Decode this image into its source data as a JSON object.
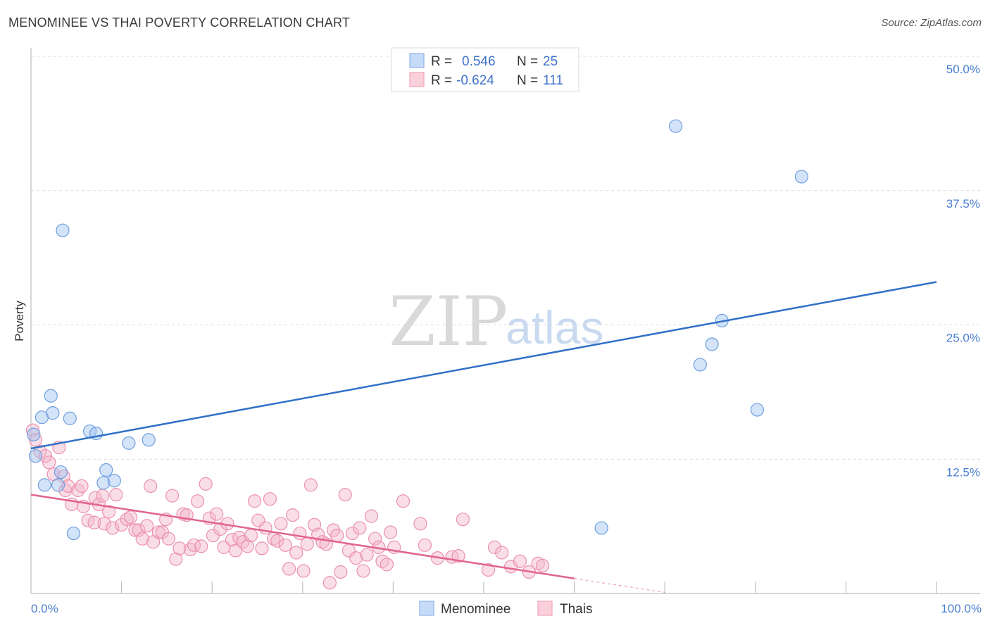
{
  "header": {
    "title": "MENOMINEE VS THAI POVERTY CORRELATION CHART",
    "source": "Source: ZipAtlas.com"
  },
  "watermark": {
    "zip": "ZIP",
    "atlas": "atlas"
  },
  "legend": {
    "rows": [
      {
        "r_label": "R =",
        "r_value": "0.546",
        "n_label": "N =",
        "n_value": "25",
        "color": "#9ec2f0"
      },
      {
        "r_label": "R =",
        "r_value": "-0.624",
        "n_label": "N =",
        "n_value": "111",
        "color": "#f5b5c9"
      }
    ]
  },
  "bottom_legend": [
    {
      "name": "Menominee",
      "color": "#9ec2f0"
    },
    {
      "name": "Thais",
      "color": "#f5b5c9"
    }
  ],
  "chart_data": {
    "type": "scatter",
    "ylabel": "Poverty",
    "xlim": [
      0,
      100
    ],
    "ylim": [
      0,
      50
    ],
    "y_ticks": [
      {
        "value": 12.5,
        "label": "12.5%"
      },
      {
        "value": 25,
        "label": "25.0%"
      },
      {
        "value": 37.5,
        "label": "37.5%"
      },
      {
        "value": 50,
        "label": "50.0%"
      }
    ],
    "x_tick_labels": [
      {
        "value": 0,
        "label": "0.0%"
      },
      {
        "value": 100,
        "label": "100.0%"
      }
    ],
    "grid": true,
    "series": [
      {
        "name": "Menominee",
        "color": "#9ec2f0",
        "line_color": "#3070c8",
        "trend": {
          "x": [
            0,
            100
          ],
          "y": [
            13.5,
            29.0
          ]
        },
        "points": [
          [
            0.3,
            14.8
          ],
          [
            0.5,
            12.8
          ],
          [
            1.2,
            16.4
          ],
          [
            2.2,
            18.4
          ],
          [
            2.4,
            16.8
          ],
          [
            3.3,
            11.3
          ],
          [
            3.5,
            33.8
          ],
          [
            1.5,
            10.1
          ],
          [
            4.3,
            16.3
          ],
          [
            3.0,
            10.1
          ],
          [
            4.7,
            5.6
          ],
          [
            6.5,
            15.1
          ],
          [
            7.2,
            14.9
          ],
          [
            8.3,
            11.5
          ],
          [
            8.0,
            10.3
          ],
          [
            9.2,
            10.5
          ],
          [
            10.8,
            14.0
          ],
          [
            13.0,
            14.3
          ],
          [
            63.0,
            6.1
          ],
          [
            71.2,
            43.5
          ],
          [
            73.9,
            21.3
          ],
          [
            75.2,
            23.2
          ],
          [
            76.3,
            25.4
          ],
          [
            80.2,
            17.1
          ],
          [
            85.1,
            38.8
          ]
        ]
      },
      {
        "name": "Thais",
        "color": "#f5b5c9",
        "line_color": "#e0648e",
        "trend": {
          "x": [
            0,
            60
          ],
          "y": [
            9.2,
            1.4
          ]
        },
        "trend_dashed": {
          "x": [
            60,
            70
          ],
          "y": [
            1.4,
            0.1
          ]
        },
        "points": [
          [
            0.2,
            15.2
          ],
          [
            0.5,
            14.3
          ],
          [
            1.0,
            13.2
          ],
          [
            1.6,
            12.8
          ],
          [
            2.0,
            12.2
          ],
          [
            3.1,
            13.6
          ],
          [
            2.5,
            11.1
          ],
          [
            3.8,
            9.6
          ],
          [
            3.6,
            10.9
          ],
          [
            4.1,
            10.0
          ],
          [
            5.2,
            9.6
          ],
          [
            4.5,
            8.3
          ],
          [
            5.6,
            10.0
          ],
          [
            5.8,
            8.1
          ],
          [
            6.3,
            6.8
          ],
          [
            7.1,
            8.9
          ],
          [
            7.5,
            8.3
          ],
          [
            7.9,
            9.1
          ],
          [
            7.0,
            6.6
          ],
          [
            8.1,
            6.5
          ],
          [
            8.6,
            7.6
          ],
          [
            9.0,
            6.1
          ],
          [
            9.4,
            9.2
          ],
          [
            10.0,
            6.4
          ],
          [
            10.6,
            6.9
          ],
          [
            11.0,
            7.1
          ],
          [
            11.5,
            5.9
          ],
          [
            11.9,
            5.9
          ],
          [
            12.3,
            5.1
          ],
          [
            12.8,
            6.3
          ],
          [
            13.2,
            10.0
          ],
          [
            13.5,
            4.8
          ],
          [
            14.1,
            5.7
          ],
          [
            14.5,
            5.7
          ],
          [
            14.9,
            6.9
          ],
          [
            15.2,
            5.1
          ],
          [
            15.6,
            9.1
          ],
          [
            16.0,
            3.2
          ],
          [
            16.4,
            4.2
          ],
          [
            16.8,
            7.4
          ],
          [
            17.2,
            7.3
          ],
          [
            17.6,
            4.1
          ],
          [
            18.0,
            4.5
          ],
          [
            18.4,
            8.6
          ],
          [
            18.8,
            4.4
          ],
          [
            19.3,
            10.2
          ],
          [
            19.7,
            7.0
          ],
          [
            20.1,
            5.4
          ],
          [
            20.5,
            7.4
          ],
          [
            20.9,
            6.0
          ],
          [
            21.3,
            4.3
          ],
          [
            21.7,
            6.5
          ],
          [
            22.2,
            5.0
          ],
          [
            22.6,
            4.0
          ],
          [
            23.0,
            5.2
          ],
          [
            23.4,
            4.8
          ],
          [
            23.9,
            4.4
          ],
          [
            24.3,
            5.4
          ],
          [
            24.7,
            8.6
          ],
          [
            25.1,
            6.8
          ],
          [
            25.5,
            4.2
          ],
          [
            25.9,
            6.1
          ],
          [
            26.4,
            8.8
          ],
          [
            26.8,
            5.1
          ],
          [
            27.2,
            4.9
          ],
          [
            27.6,
            6.5
          ],
          [
            28.1,
            4.5
          ],
          [
            28.5,
            2.3
          ],
          [
            28.9,
            7.3
          ],
          [
            29.3,
            3.8
          ],
          [
            29.7,
            5.6
          ],
          [
            30.1,
            2.1
          ],
          [
            30.5,
            4.6
          ],
          [
            30.9,
            10.1
          ],
          [
            31.3,
            6.4
          ],
          [
            31.7,
            5.5
          ],
          [
            32.2,
            4.8
          ],
          [
            32.6,
            4.6
          ],
          [
            33.0,
            1.0
          ],
          [
            33.4,
            5.9
          ],
          [
            33.8,
            5.4
          ],
          [
            34.2,
            2.0
          ],
          [
            34.7,
            9.2
          ],
          [
            35.1,
            4.0
          ],
          [
            35.5,
            5.6
          ],
          [
            35.9,
            3.3
          ],
          [
            36.3,
            6.1
          ],
          [
            36.7,
            2.1
          ],
          [
            37.1,
            3.6
          ],
          [
            37.6,
            7.2
          ],
          [
            38.0,
            5.1
          ],
          [
            38.4,
            4.3
          ],
          [
            38.8,
            3.0
          ],
          [
            39.3,
            2.7
          ],
          [
            39.7,
            5.7
          ],
          [
            40.1,
            4.3
          ],
          [
            41.1,
            8.6
          ],
          [
            43.0,
            6.5
          ],
          [
            43.5,
            4.5
          ],
          [
            44.9,
            3.3
          ],
          [
            46.5,
            3.4
          ],
          [
            47.2,
            3.5
          ],
          [
            47.7,
            6.9
          ],
          [
            50.5,
            2.2
          ],
          [
            51.2,
            4.3
          ],
          [
            52.0,
            3.8
          ],
          [
            53.0,
            2.5
          ],
          [
            54.0,
            3.0
          ],
          [
            55.0,
            2.0
          ],
          [
            56.0,
            2.8
          ],
          [
            56.5,
            2.6
          ]
        ]
      }
    ]
  }
}
